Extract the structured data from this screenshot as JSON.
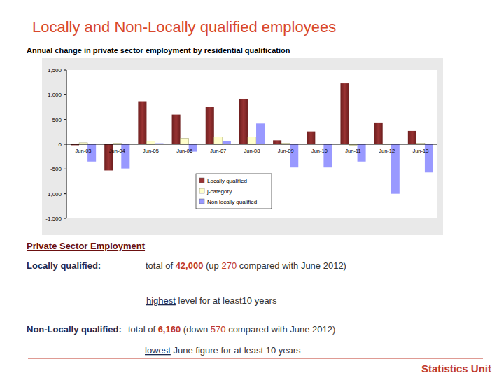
{
  "page": {
    "title": "Locally and Non-Locally qualified employees",
    "section": "Private Sector Employment",
    "locally": {
      "label": "Locally qualified:",
      "total_prefix": "total of ",
      "total": "42,000",
      "change_prefix": " (up ",
      "change": "270",
      "change_suffix": " compared with June 2012)",
      "note_em": "highest",
      "note_rest": " level for at least10 years"
    },
    "non_locally": {
      "label": "Non-Locally qualified:",
      "total_prefix": " total of ",
      "total": "6,160",
      "change_prefix": " (down ",
      "change": "570",
      "change_suffix": " compared with June 2012)",
      "note_em": "lowest",
      "note_rest": " June figure for at least 10 years"
    },
    "footer": "Statistics Unit"
  },
  "chart_data": {
    "type": "bar",
    "title": "Annual change in private sector employment by residential qualification",
    "categories": [
      "Jun-03",
      "Jun-04",
      "Jun-05",
      "Jun-06",
      "Jun-07",
      "Jun-08",
      "Jun-09",
      "Jun-10",
      "Jun-11",
      "Jun-12",
      "Jun-13"
    ],
    "series": [
      {
        "name": "Locally qualified",
        "color": "#993333",
        "values": [
          -20,
          -530,
          870,
          600,
          750,
          920,
          80,
          260,
          1230,
          440,
          270
        ]
      },
      {
        "name": "j-category",
        "color": "#ffffcc",
        "values": [
          30,
          20,
          60,
          120,
          150,
          150,
          20,
          0,
          -20,
          10,
          20
        ]
      },
      {
        "name": "Non locally qualified",
        "color": "#9999ff",
        "values": [
          -350,
          -490,
          20,
          -150,
          60,
          420,
          -470,
          -470,
          -350,
          -1000,
          -570
        ]
      }
    ],
    "ylim": [
      -1500,
      1500
    ],
    "yticks": [
      {
        "value": -1500,
        "label": "-1,500"
      },
      {
        "value": -1000,
        "label": "-1,000"
      },
      -500,
      0,
      500,
      {
        "value": 1000,
        "label": "1,000"
      },
      {
        "value": 1500,
        "label": "1,500"
      }
    ],
    "grid": false,
    "legend": "bottom"
  }
}
